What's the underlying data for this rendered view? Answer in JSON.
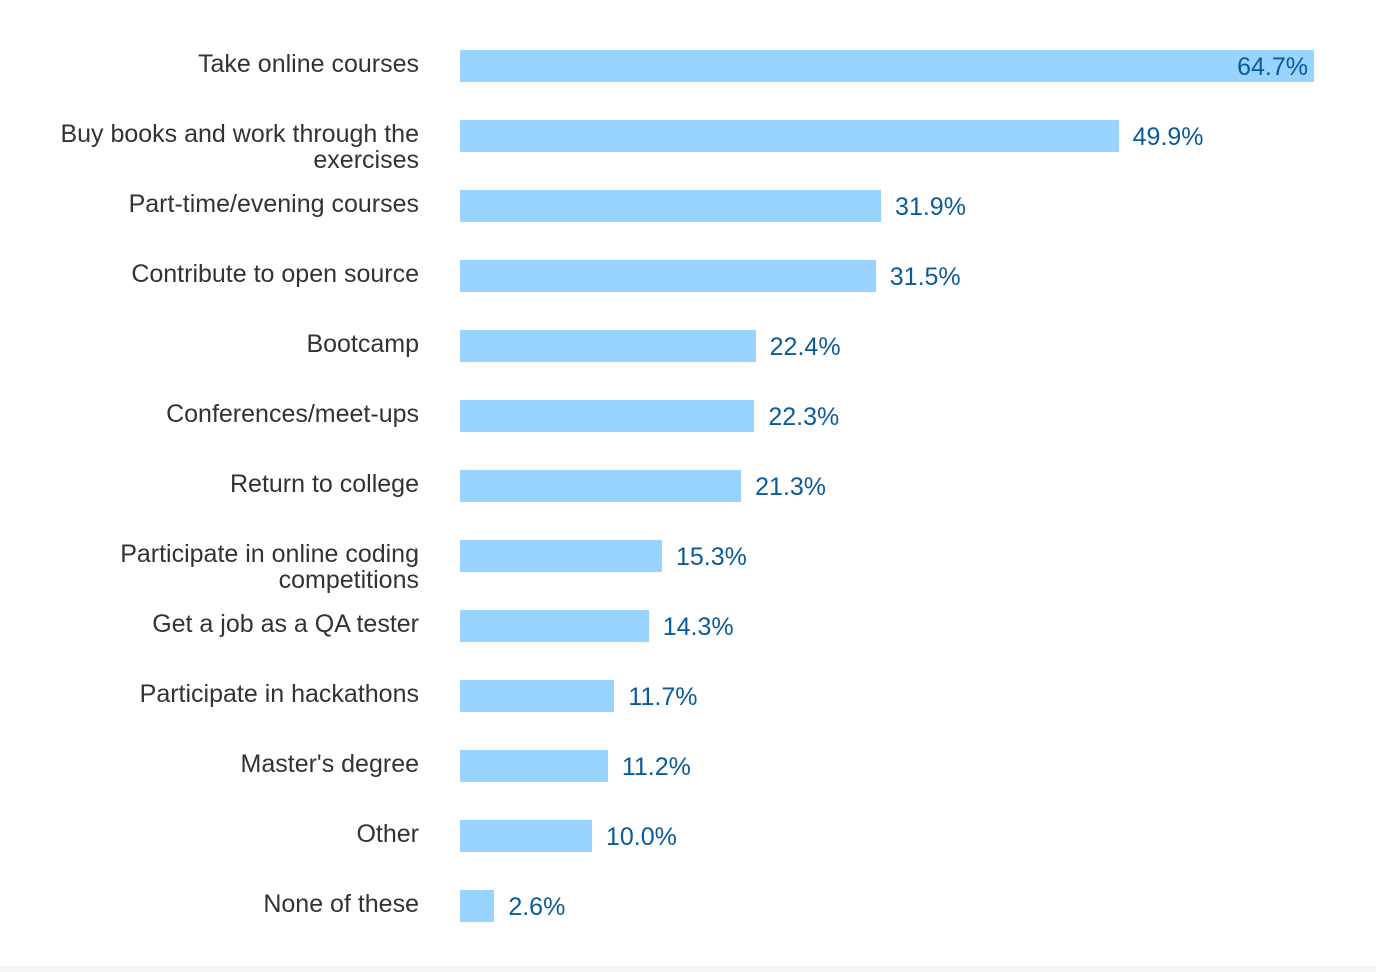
{
  "chart_data": {
    "type": "bar",
    "orientation": "horizontal",
    "categories": [
      "Take online courses",
      "Buy books and work through the exercises",
      "Part-time/evening courses",
      "Contribute to open source",
      "Bootcamp",
      "Conferences/meet-ups",
      "Return to college",
      "Participate in online coding competitions",
      "Get a job as a QA tester",
      "Participate in hackathons",
      "Master's degree",
      "Other",
      "None of these"
    ],
    "values": [
      64.7,
      49.9,
      31.9,
      31.5,
      22.4,
      22.3,
      21.3,
      15.3,
      14.3,
      11.7,
      11.2,
      10.0,
      2.6
    ],
    "value_labels": [
      "64.7%",
      "49.9%",
      "31.9%",
      "31.5%",
      "22.4%",
      "22.3%",
      "21.3%",
      "15.3%",
      "14.3%",
      "11.7%",
      "11.2%",
      "10.0%",
      "2.6%"
    ],
    "unit": "%",
    "xlim": [
      0,
      64.7
    ],
    "grid": false,
    "colors": {
      "bar": "#99d3ff",
      "value_label": "#0a5a9c",
      "category_label": "#333333"
    }
  }
}
